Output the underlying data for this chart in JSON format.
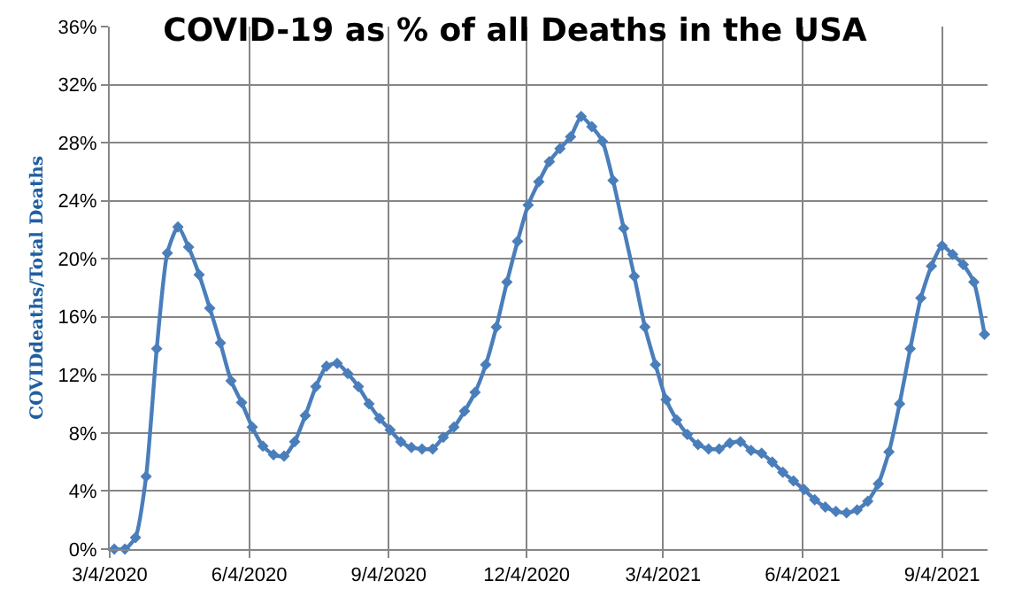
{
  "chart_data": {
    "type": "line",
    "title": "COVID-19 as % of all Deaths in the USA",
    "ylabel": "COVIDdeaths/Total Deaths",
    "x": [
      "2020-03-07",
      "2020-03-14",
      "2020-03-21",
      "2020-03-28",
      "2020-04-04",
      "2020-04-11",
      "2020-04-18",
      "2020-04-25",
      "2020-05-02",
      "2020-05-09",
      "2020-05-16",
      "2020-05-23",
      "2020-05-30",
      "2020-06-06",
      "2020-06-13",
      "2020-06-20",
      "2020-06-27",
      "2020-07-04",
      "2020-07-11",
      "2020-07-18",
      "2020-07-25",
      "2020-08-01",
      "2020-08-08",
      "2020-08-15",
      "2020-08-22",
      "2020-08-29",
      "2020-09-05",
      "2020-09-12",
      "2020-09-19",
      "2020-09-26",
      "2020-10-03",
      "2020-10-10",
      "2020-10-17",
      "2020-10-24",
      "2020-10-31",
      "2020-11-07",
      "2020-11-14",
      "2020-11-21",
      "2020-11-28",
      "2020-12-05",
      "2020-12-12",
      "2020-12-19",
      "2020-12-26",
      "2021-01-02",
      "2021-01-09",
      "2021-01-16",
      "2021-01-23",
      "2021-01-30",
      "2021-02-06",
      "2021-02-13",
      "2021-02-20",
      "2021-02-27",
      "2021-03-06",
      "2021-03-13",
      "2021-03-20",
      "2021-03-27",
      "2021-04-03",
      "2021-04-10",
      "2021-04-17",
      "2021-04-24",
      "2021-05-01",
      "2021-05-08",
      "2021-05-15",
      "2021-05-22",
      "2021-05-29",
      "2021-06-05",
      "2021-06-12",
      "2021-06-19",
      "2021-06-26",
      "2021-07-03",
      "2021-07-10",
      "2021-07-17",
      "2021-07-24",
      "2021-07-31",
      "2021-08-07",
      "2021-08-14",
      "2021-08-21",
      "2021-08-28",
      "2021-09-04",
      "2021-09-11",
      "2021-09-18",
      "2021-09-25",
      "2021-10-02"
    ],
    "series": [
      {
        "color": "#4a7ebb",
        "values": [
          0,
          0,
          0.8,
          5.0,
          13.8,
          20.4,
          22.2,
          20.8,
          18.9,
          16.6,
          14.2,
          11.6,
          10.1,
          8.4,
          7.1,
          6.5,
          6.4,
          7.4,
          9.2,
          11.2,
          12.6,
          12.8,
          12.1,
          11.2,
          10.0,
          9.0,
          8.2,
          7.4,
          7.0,
          6.9,
          6.9,
          7.7,
          8.4,
          9.5,
          10.8,
          12.7,
          15.3,
          18.4,
          21.2,
          23.7,
          25.3,
          26.7,
          27.6,
          28.4,
          29.8,
          29.1,
          28.1,
          25.4,
          22.1,
          18.8,
          15.3,
          12.7,
          10.3,
          8.9,
          7.9,
          7.2,
          6.9,
          6.9,
          7.3,
          7.4,
          6.8,
          6.6,
          6.0,
          5.3,
          4.7,
          4.1,
          3.4,
          2.9,
          2.6,
          2.5,
          2.7,
          3.3,
          4.5,
          6.7,
          10.0,
          13.8,
          17.3,
          19.5,
          20.9,
          20.3,
          19.6,
          18.4,
          14.8
        ]
      }
    ],
    "xlim": [
      "2020-03-04",
      "2021-10-04"
    ],
    "xticks": [
      {
        "value": "2020-03-04",
        "label": "3/4/2020"
      },
      {
        "value": "2020-06-04",
        "label": "6/4/2020"
      },
      {
        "value": "2020-09-04",
        "label": "9/4/2020"
      },
      {
        "value": "2020-12-04",
        "label": "12/4/2020"
      },
      {
        "value": "2021-03-04",
        "label": "3/4/2021"
      },
      {
        "value": "2021-06-04",
        "label": "6/4/2021"
      },
      {
        "value": "2021-09-04",
        "label": "9/4/2021"
      }
    ],
    "ylim": [
      0,
      36
    ],
    "yticks": [
      {
        "value": 0,
        "label": "0%"
      },
      {
        "value": 4,
        "label": "4%"
      },
      {
        "value": 8,
        "label": "8%"
      },
      {
        "value": 12,
        "label": "12%"
      },
      {
        "value": 16,
        "label": "16%"
      },
      {
        "value": 20,
        "label": "20%"
      },
      {
        "value": 24,
        "label": "24%"
      },
      {
        "value": 28,
        "label": "28%"
      },
      {
        "value": 32,
        "label": "32%"
      },
      {
        "value": 36,
        "label": "36%"
      }
    ],
    "grid": true,
    "marker": "diamond",
    "line_style": "solid"
  }
}
